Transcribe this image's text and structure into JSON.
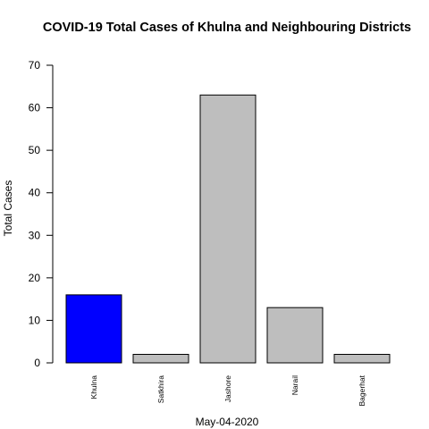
{
  "chart_data": {
    "type": "bar",
    "title": "COVID-19 Total Cases of Khulna and Neighbouring Districts",
    "xlabel": "May-04-2020",
    "ylabel": "Total Cases",
    "categories": [
      "Khulna",
      "Satkhira",
      "Jashore",
      "Narail",
      "Bagerhat"
    ],
    "values": [
      16,
      2,
      63,
      13,
      2
    ],
    "bar_colors": [
      "#0000ff",
      "#bebebe",
      "#bebebe",
      "#bebebe",
      "#bebebe"
    ],
    "bar_border_color": "#000000",
    "ylim": [
      0,
      70
    ],
    "yticks": [
      0,
      10,
      20,
      30,
      40,
      50,
      60,
      70
    ],
    "grid": false,
    "legend": "none"
  }
}
